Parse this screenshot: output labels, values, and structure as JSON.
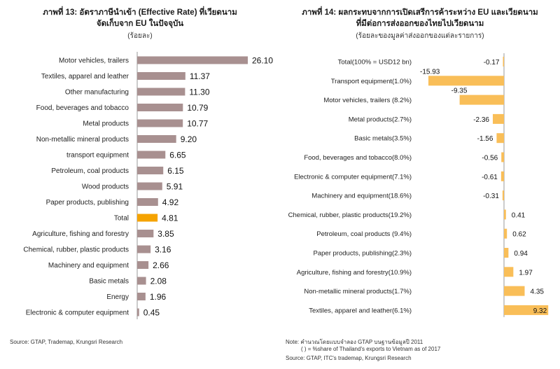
{
  "chart_data": [
    {
      "type": "bar",
      "orientation": "horizontal",
      "title": "ภาพที่ 13: อัตราภาษีนำเข้า (Effective Rate) ที่เวียดนาม",
      "title_line2": "จัดเก็บจาก EU ในปัจจุบัน",
      "subtitle": "(ร้อยละ)",
      "categories": [
        "Motor vehicles, trailers",
        "Textiles, apparel and leather",
        "Other manufacturing",
        "Food, beverages and tobacco",
        "Metal products",
        "Non-metallic mineral products",
        "transport equipment",
        "Petroleum, coal products",
        "Wood products",
        "Paper products, publishing",
        "Total",
        "Agriculture, fishing and forestry",
        "Chemical, rubber, plastic products",
        "Machinery and equipment",
        "Basic metals",
        "Energy",
        "Electronic & computer equipment"
      ],
      "values": [
        26.1,
        11.37,
        11.3,
        10.79,
        10.77,
        9.2,
        6.65,
        6.15,
        5.91,
        4.92,
        4.81,
        3.85,
        3.16,
        2.66,
        2.08,
        1.96,
        0.45
      ],
      "value_labels": [
        "26.10",
        "11.37",
        "11.30",
        "10.79",
        "10.77",
        "9.20",
        "6.65",
        "6.15",
        "5.91",
        "4.92",
        "4.81",
        "3.85",
        "3.16",
        "2.66",
        "2.08",
        "1.96",
        "0.45"
      ],
      "highlight": "Total",
      "xlim": [
        0,
        26.1
      ],
      "grid": false,
      "source": "Source: GTAP, Trademap, Krungsri Research"
    },
    {
      "type": "bar",
      "orientation": "horizontal",
      "title": "ภาพที่ 14: ผลกระทบจากการเปิดเสรีการค้าระหว่าง EU และเวียดนาม",
      "title_line2": "ที่มีต่อการส่งออกของไทยไปเวียดนาม",
      "subtitle": "(ร้อยละของมูลค่าส่งออกของแต่ละรายการ)",
      "categories": [
        "Total(100% = USD12 bn)",
        "Transport equipment(1.0%)",
        "Motor vehicles, trailers (8.2%)",
        "Metal products(2.7%)",
        "Basic metals(3.5%)",
        "Food, beverages and tobacco(8.0%)",
        "Electronic & computer equipment(7.1%)",
        "Machinery and equipment(18.6%)",
        "Chemical, rubber, plastic products(19.2%)",
        "Petroleum, coal products (9.4%)",
        "Paper products, publishing(2.3%)",
        "Agriculture, fishing and forestry(10.9%)",
        "Non-metallic mineral products(1.7%)",
        "Textiles, apparel and leather(6.1%)"
      ],
      "values": [
        -0.17,
        -15.93,
        -9.35,
        -2.36,
        -1.56,
        -0.56,
        -0.61,
        -0.31,
        0.41,
        0.62,
        0.94,
        1.97,
        4.35,
        9.32
      ],
      "value_labels": [
        "-0.17",
        "-15.93",
        "-9.35",
        "-2.36",
        "-1.56",
        "-0.56",
        "-0.61",
        "-0.31",
        "0.41",
        "0.62",
        "0.94",
        "1.97",
        "4.35",
        "9.32"
      ],
      "xlim": [
        -15.93,
        9.32
      ],
      "grid": false,
      "note_line1": "Note: คำนวณโดยแบบจำลอง GTAP บนฐานข้อมูลปี 2011",
      "note_line2": "( ) = %share of Thailand's exports to Vietnam  as of 2017",
      "source": "Source: GTAP, ITC's trademap, Krungsri Research"
    }
  ],
  "colors": {
    "bar_left": "#a89090",
    "bar_left_highlight": "#f5a300",
    "bar_right": "#f9be58",
    "axis": "#9a9a9a",
    "text": "#222222"
  }
}
